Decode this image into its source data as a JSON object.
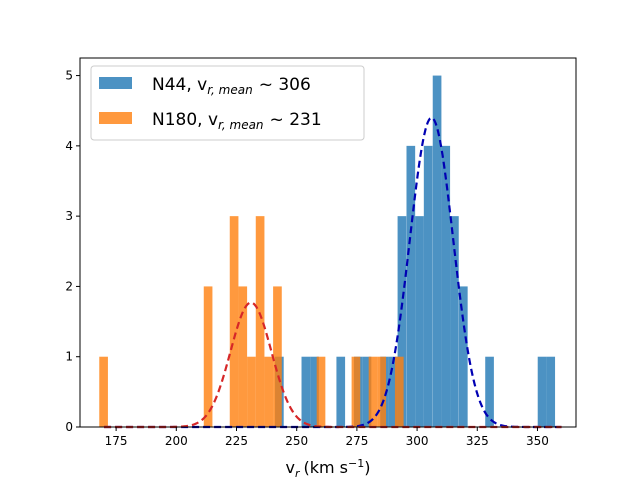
{
  "chart_data": {
    "type": "histogram",
    "xlabel": "v",
    "xlabel_sub": "r",
    "xlabel_units": "(km s",
    "xlabel_units_sup": "−1",
    "xlabel_units_close": ")",
    "xlim": [
      160,
      366
    ],
    "ylim": [
      0,
      5.25
    ],
    "xticks": [
      175,
      200,
      225,
      250,
      275,
      300,
      325,
      350
    ],
    "yticks": [
      0,
      1,
      2,
      3,
      4,
      5
    ],
    "grid": false,
    "legend_position": "top-left",
    "series": [
      {
        "name": "N44, v",
        "name_sub": "r, mean",
        "name_tail": "~  306",
        "color": "#1f77b4",
        "opacity": 0.8,
        "bin_width": 3.6,
        "bins": [
          {
            "x0": 241.0,
            "count": 1
          },
          {
            "x0": 252.0,
            "count": 1
          },
          {
            "x0": 255.6,
            "count": 1
          },
          {
            "x0": 266.5,
            "count": 1
          },
          {
            "x0": 273.8,
            "count": 1
          },
          {
            "x0": 277.4,
            "count": 1
          },
          {
            "x0": 284.7,
            "count": 1
          },
          {
            "x0": 288.3,
            "count": 1
          },
          {
            "x0": 291.9,
            "count": 3
          },
          {
            "x0": 295.6,
            "count": 4
          },
          {
            "x0": 299.2,
            "count": 3
          },
          {
            "x0": 302.8,
            "count": 4
          },
          {
            "x0": 306.5,
            "count": 5
          },
          {
            "x0": 310.1,
            "count": 4
          },
          {
            "x0": 313.7,
            "count": 3
          },
          {
            "x0": 317.4,
            "count": 2
          },
          {
            "x0": 328.3,
            "count": 1
          },
          {
            "x0": 350.1,
            "count": 1
          },
          {
            "x0": 353.7,
            "count": 1
          }
        ],
        "fit": {
          "mean": 306,
          "sigma": 9.0,
          "amplitude": 4.4,
          "color": "#0000b3",
          "style": "dashed"
        }
      },
      {
        "name": "N180, v",
        "name_sub": "r, mean",
        "name_tail": "~  231",
        "color": "#ff7f0e",
        "opacity": 0.8,
        "bin_width": 3.6,
        "bins": [
          {
            "x0": 168.0,
            "count": 1
          },
          {
            "x0": 211.4,
            "count": 2
          },
          {
            "x0": 222.2,
            "count": 3
          },
          {
            "x0": 225.8,
            "count": 2
          },
          {
            "x0": 229.4,
            "count": 1
          },
          {
            "x0": 233.0,
            "count": 3
          },
          {
            "x0": 236.6,
            "count": 1
          },
          {
            "x0": 240.2,
            "count": 2
          },
          {
            "x0": 258.3,
            "count": 1
          },
          {
            "x0": 272.8,
            "count": 1
          },
          {
            "x0": 279.9,
            "count": 1
          },
          {
            "x0": 283.5,
            "count": 1
          },
          {
            "x0": 290.8,
            "count": 1
          }
        ],
        "fit": {
          "mean": 231,
          "sigma": 8.5,
          "amplitude": 1.77,
          "color": "#d62728",
          "style": "dashed"
        }
      }
    ]
  }
}
